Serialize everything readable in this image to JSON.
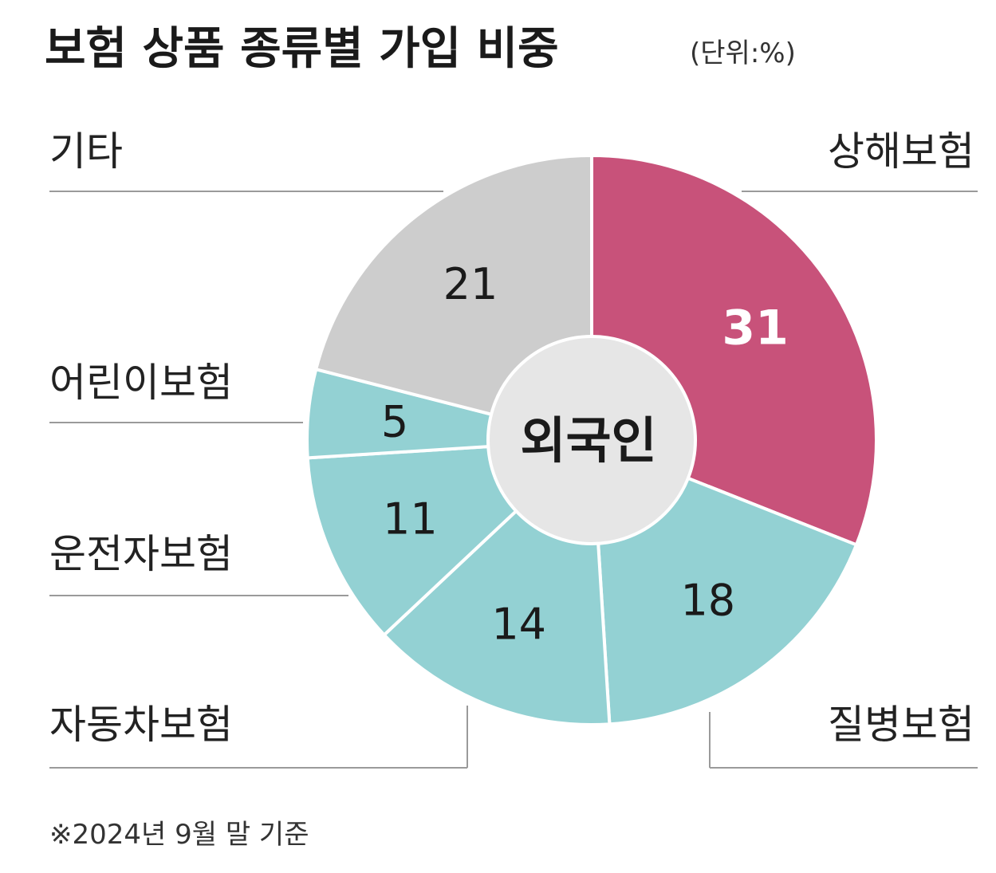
{
  "chart_data": {
    "type": "pie",
    "variant": "donut",
    "title": "보험 상품 종류별 가입 비중",
    "unit": "(단위:%)",
    "center_label": "외국인",
    "footnote": "※2024년 9월 말 기준",
    "categories": [
      "상해보험",
      "질병보험",
      "자동차보험",
      "운전자보험",
      "어린이보험",
      "기타"
    ],
    "values": [
      31,
      18,
      14,
      11,
      5,
      21
    ],
    "colors": [
      "#c8527a",
      "#93d1d3",
      "#93d1d3",
      "#93d1d3",
      "#93d1d3",
      "#cdcdcd"
    ],
    "value_label_colors": [
      "#ffffff",
      "#1a1a1a",
      "#1a1a1a",
      "#1a1a1a",
      "#1a1a1a",
      "#1a1a1a"
    ],
    "center_color": "#e6e6e6",
    "separator_color": "#ffffff"
  }
}
